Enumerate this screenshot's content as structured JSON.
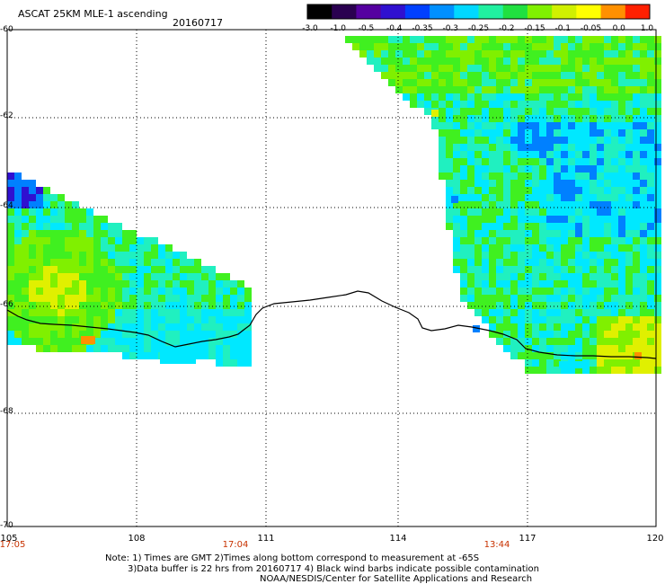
{
  "header": {
    "title": "ASCAT 25KM MLE-1 ascending",
    "date": "20160717"
  },
  "colorbar": {
    "ticks": [
      "-3.0",
      "-1.0",
      "-0.5",
      "-0.4",
      "-0.35",
      "-0.3",
      "-0.25",
      "-0.2",
      "-0.15",
      "-0.1",
      "-0.05",
      "0.0",
      "1.0"
    ],
    "colors": [
      "#000000",
      "#2a0050",
      "#5500a0",
      "#3010d0",
      "#0040ff",
      "#0090ff",
      "#00d8ff",
      "#20f0a0",
      "#20e040",
      "#80f000",
      "#d0f000",
      "#ffff00",
      "#ff9000",
      "#ff2000"
    ]
  },
  "axes": {
    "lat_labels": [
      "-60",
      "-62",
      "-64",
      "-66",
      "-68",
      "-70"
    ],
    "lon_labels": [
      "105",
      "108",
      "111",
      "114",
      "117",
      "120"
    ]
  },
  "times": [
    {
      "label": "17:05"
    },
    {
      "label": "17:04"
    },
    {
      "label": "13:44"
    }
  ],
  "notes": {
    "line1": "Note: 1) Times are GMT 2)Times along bottom correspond to measurement at -65S",
    "line2": "3)Data buffer is 22 hrs from 20160717 4) Black wind barbs indicate possible contamination",
    "line3": "NOAA/NESDIS/Center for Satellite Applications and Research"
  },
  "palette": {
    "cyan": "#00e8ff",
    "teal": "#20f0c0",
    "green": "#40f020",
    "lightgreen": "#80f000",
    "yellow": "#e0f000",
    "blue": "#0080ff",
    "darkblue": "#3010d0",
    "orange": "#ff9000"
  }
}
